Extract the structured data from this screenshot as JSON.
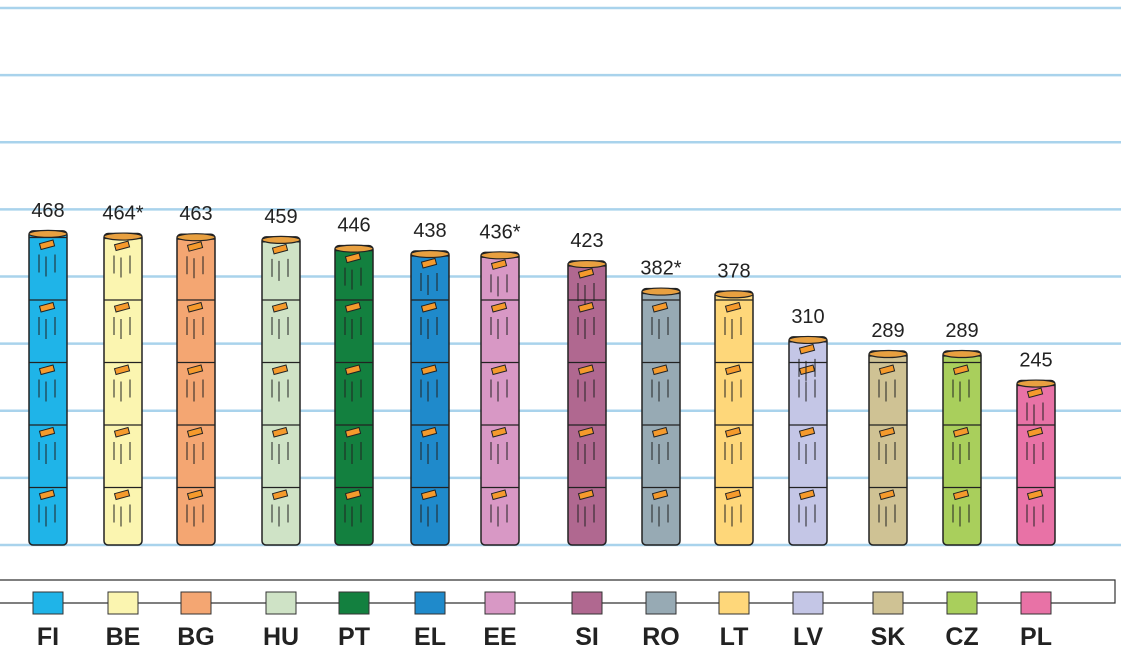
{
  "chart_data": {
    "type": "bar",
    "categories": [
      "FI",
      "BE",
      "BG",
      "HU",
      "PT",
      "EL",
      "EE",
      "SI",
      "RO",
      "LT",
      "LV",
      "SK",
      "CZ",
      "PL"
    ],
    "values": [
      468,
      464,
      463,
      459,
      446,
      438,
      436,
      423,
      382,
      378,
      310,
      289,
      289,
      245
    ],
    "value_labels": [
      "468",
      "464*",
      "463",
      "459",
      "446",
      "438",
      "436*",
      "423",
      "382*",
      "378",
      "310",
      "289",
      "289",
      "245"
    ],
    "colors": [
      "#1fb4e8",
      "#fbf5b0",
      "#f4a672",
      "#cfe3c6",
      "#13803f",
      "#1f8acb",
      "#d898c5",
      "#b06890",
      "#97aab4",
      "#fed77a",
      "#c4c6e6",
      "#cfc294",
      "#a9cf5c",
      "#e872a6"
    ],
    "ylim": [
      0,
      800
    ],
    "yticks": [
      0,
      100,
      200,
      300,
      400,
      500,
      600,
      700,
      800
    ],
    "grid": true
  }
}
